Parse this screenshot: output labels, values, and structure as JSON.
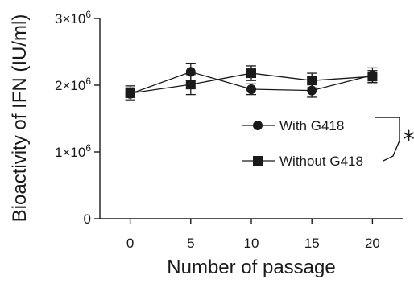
{
  "chart_data": {
    "type": "line",
    "xlabel": "Number of passage",
    "ylabel": "Bioactivity of IFN (IU/ml)",
    "x": [
      0,
      5,
      10,
      15,
      20
    ],
    "xlim": [
      -2.5,
      22.5
    ],
    "ylim": [
      0,
      3000000
    ],
    "x_ticks": [
      0,
      5,
      10,
      15,
      20
    ],
    "y_ticks": [
      {
        "value": 0,
        "label": "0"
      },
      {
        "value": 1000000,
        "label": "1×10",
        "exp": "6"
      },
      {
        "value": 2000000,
        "label": "2×10",
        "exp": "6"
      },
      {
        "value": 3000000,
        "label": "3×10",
        "exp": "6"
      }
    ],
    "series": [
      {
        "name": "With G418",
        "marker": "circle",
        "values": [
          1870000,
          2200000,
          1940000,
          1920000,
          2150000
        ],
        "errors": [
          90000,
          130000,
          80000,
          100000,
          110000
        ]
      },
      {
        "name": "Without G418",
        "marker": "square",
        "values": [
          1880000,
          2010000,
          2180000,
          2070000,
          2130000
        ],
        "errors": [
          110000,
          150000,
          110000,
          110000,
          90000
        ]
      }
    ],
    "significance": "*",
    "legend": "right",
    "grid": false
  }
}
